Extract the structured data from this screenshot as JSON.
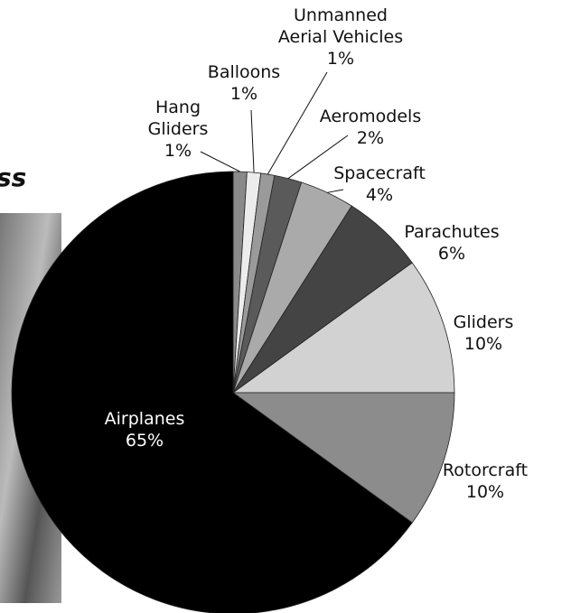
{
  "background_text": "ss",
  "chart_data": {
    "type": "pie",
    "categories": [
      "Hang\nGliders",
      "Balloons",
      "Unmanned\nAerial Vehicles",
      "Aeromodels",
      "Spacecraft",
      "Parachutes",
      "Gliders",
      "Rotorcraft",
      "Airplanes"
    ],
    "values": [
      1,
      1,
      1,
      2,
      4,
      6,
      10,
      10,
      65
    ],
    "value_labels": [
      "1%",
      "1%",
      "1%",
      "2%",
      "4%",
      "6%",
      "10%",
      "10%",
      "65%"
    ],
    "colors": [
      "#8a8a8a",
      "#ececec",
      "#9a9a9a",
      "#5a5a5a",
      "#aaaaaa",
      "#444444",
      "#d2d2d2",
      "#8c8c8c",
      "#000000"
    ]
  }
}
